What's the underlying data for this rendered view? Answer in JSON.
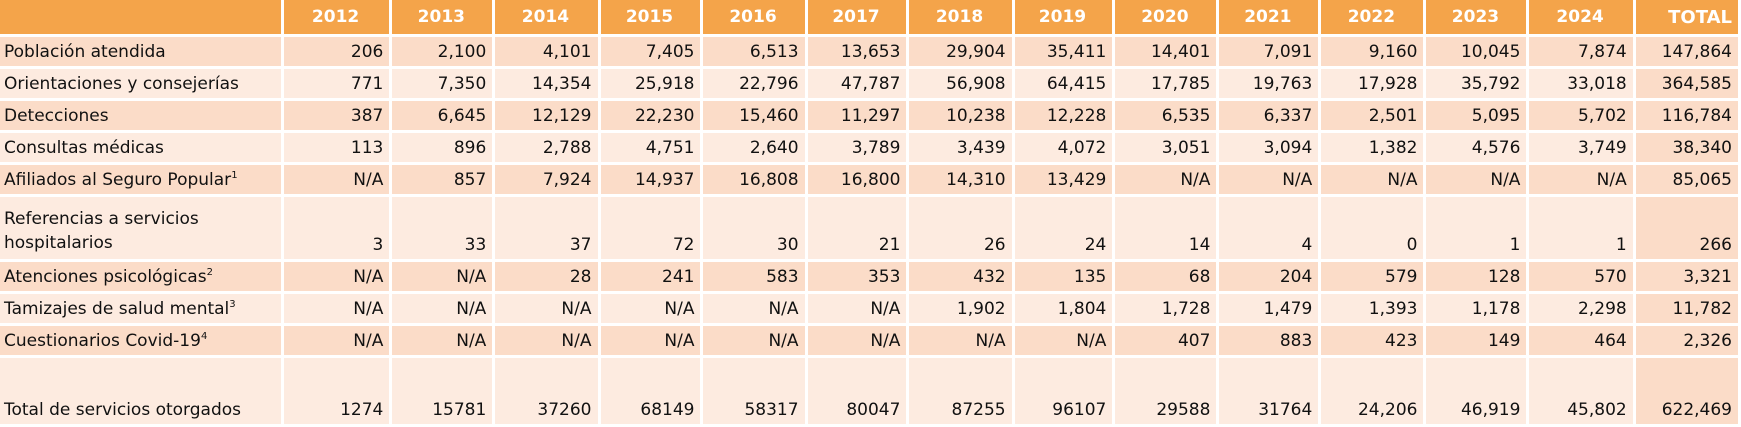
{
  "header": {
    "years": [
      "2012",
      "2013",
      "2014",
      "2015",
      "2016",
      "2017",
      "2018",
      "2019",
      "2020",
      "2021",
      "2022",
      "2023",
      "2024"
    ],
    "total": "TOTAL"
  },
  "rows": [
    {
      "label": "Población atendida",
      "sup": "",
      "values": [
        "206",
        "2,100",
        "4,101",
        "7,405",
        "6,513",
        "13,653",
        "29,904",
        "35,411",
        "14,401",
        "7,091",
        "9,160",
        "10,045",
        "7,874"
      ],
      "total": "147,864"
    },
    {
      "label": "Orientaciones y consejerías",
      "sup": "",
      "values": [
        "771",
        "7,350",
        "14,354",
        "25,918",
        "22,796",
        "47,787",
        "56,908",
        "64,415",
        "17,785",
        "19,763",
        "17,928",
        "35,792",
        "33,018"
      ],
      "total": "364,585"
    },
    {
      "label": "Detecciones",
      "sup": "",
      "values": [
        "387",
        "6,645",
        "12,129",
        "22,230",
        "15,460",
        "11,297",
        "10,238",
        "12,228",
        "6,535",
        "6,337",
        "2,501",
        "5,095",
        "5,702"
      ],
      "total": "116,784"
    },
    {
      "label": "Consultas médicas",
      "sup": "",
      "values": [
        "113",
        "896",
        "2,788",
        "4,751",
        "2,640",
        "3,789",
        "3,439",
        "4,072",
        "3,051",
        "3,094",
        "1,382",
        "4,576",
        "3,749"
      ],
      "total": "38,340"
    },
    {
      "label": "Afiliados al Seguro Popular",
      "sup": "1",
      "values": [
        "N/A",
        "857",
        "7,924",
        "14,937",
        "16,808",
        "16,800",
        "14,310",
        "13,429",
        "N/A",
        "N/A",
        "N/A",
        "N/A",
        "N/A"
      ],
      "total": "85,065"
    },
    {
      "label": "Referencias a servicios hospitalarios",
      "sup": "",
      "values": [
        "3",
        "33",
        "37",
        "72",
        "30",
        "21",
        "26",
        "24",
        "14",
        "4",
        "0",
        "1",
        "1"
      ],
      "total": "266"
    },
    {
      "label": "Atenciones psicológicas",
      "sup": "2",
      "values": [
        "N/A",
        "N/A",
        "28",
        "241",
        "583",
        "353",
        "432",
        "135",
        "68",
        "204",
        "579",
        "128",
        "570"
      ],
      "total": "3,321"
    },
    {
      "label": "Tamizajes de salud mental",
      "sup": "3",
      "values": [
        "N/A",
        "N/A",
        "N/A",
        "N/A",
        "N/A",
        "N/A",
        "1,902",
        "1,804",
        "1,728",
        "1,479",
        "1,393",
        "1,178",
        "2,298"
      ],
      "total": "11,782"
    },
    {
      "label": "Cuestionarios Covid-19",
      "sup": "4",
      "values": [
        "N/A",
        "N/A",
        "N/A",
        "N/A",
        "N/A",
        "N/A",
        "N/A",
        "N/A",
        "407",
        "883",
        "423",
        "149",
        "464"
      ],
      "total": "2,326"
    },
    {
      "label": "Total de servicios otorgados",
      "sup": "",
      "values": [
        "1274",
        "15781",
        "37260",
        "68149",
        "58317",
        "80047",
        "87255",
        "96107",
        "29588",
        "31764",
        "24,206",
        "46,919",
        "45,802"
      ],
      "total": "622,469"
    }
  ]
}
